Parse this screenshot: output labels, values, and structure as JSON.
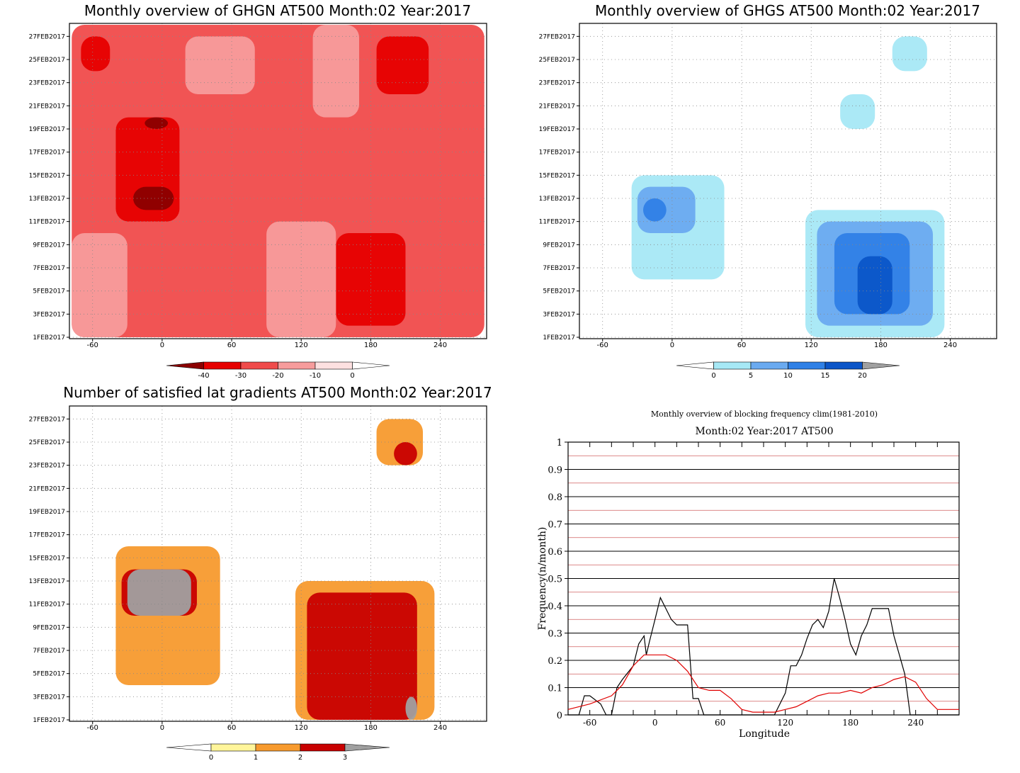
{
  "chart_data": [
    {
      "type": "heatmap",
      "title": "Monthly overview of GHGN AT500 Month:02 Year:2017",
      "y_ticks": [
        "1FEB2017",
        "3FEB2017",
        "5FEB2017",
        "7FEB2017",
        "9FEB2017",
        "11FEB2017",
        "13FEB2017",
        "15FEB2017",
        "17FEB2017",
        "19FEB2017",
        "21FEB2017",
        "23FEB2017",
        "25FEB2017",
        "27FEB2017"
      ],
      "x_ticks": [
        "-60",
        "0",
        "60",
        "120",
        "180",
        "240"
      ],
      "xlim": [
        -80,
        280
      ],
      "colorbar": {
        "levels": [
          "-40",
          "-30",
          "-20",
          "-10",
          "0"
        ],
        "colors": [
          "#8b0000",
          "#e60000",
          "#f04b4b",
          "#f79c9c",
          "#fde0e0",
          "#ffffff"
        ]
      },
      "regions": [
        {
          "level": -20,
          "x": [
            -78,
            278
          ],
          "y": [
            1,
            28
          ]
        },
        {
          "level": -30,
          "x": [
            -40,
            15
          ],
          "y": [
            11,
            20
          ]
        },
        {
          "level": -40,
          "x": [
            -25,
            10
          ],
          "y": [
            12,
            14
          ]
        },
        {
          "level": -40,
          "x": [
            -15,
            5
          ],
          "y": [
            19,
            20
          ]
        },
        {
          "level": -30,
          "x": [
            150,
            210
          ],
          "y": [
            2,
            10
          ]
        },
        {
          "level": -30,
          "x": [
            185,
            230
          ],
          "y": [
            22,
            27
          ]
        },
        {
          "level": -30,
          "x": [
            -70,
            -45
          ],
          "y": [
            24,
            27
          ]
        },
        {
          "level": -10,
          "x": [
            20,
            80
          ],
          "y": [
            22,
            27
          ]
        },
        {
          "level": -10,
          "x": [
            130,
            170
          ],
          "y": [
            20,
            28
          ]
        },
        {
          "level": -10,
          "x": [
            -78,
            -30
          ],
          "y": [
            1,
            10
          ]
        },
        {
          "level": -10,
          "x": [
            90,
            150
          ],
          "y": [
            1,
            11
          ]
        }
      ]
    },
    {
      "type": "heatmap",
      "title": "Monthly overview of GHGS AT500 Month:02 Year:2017",
      "y_ticks": [
        "1FEB2017",
        "3FEB2017",
        "5FEB2017",
        "7FEB2017",
        "9FEB2017",
        "11FEB2017",
        "13FEB2017",
        "15FEB2017",
        "17FEB2017",
        "19FEB2017",
        "21FEB2017",
        "23FEB2017",
        "25FEB2017",
        "27FEB2017"
      ],
      "x_ticks": [
        "-60",
        "0",
        "60",
        "120",
        "180",
        "240"
      ],
      "xlim": [
        -80,
        280
      ],
      "colorbar": {
        "levels": [
          "0",
          "5",
          "10",
          "15",
          "20"
        ],
        "colors": [
          "#ffffff",
          "#a6e8f5",
          "#6aaaf0",
          "#2f80e6",
          "#0b55c8",
          "#a0a0a0"
        ]
      },
      "regions": [
        {
          "level": 0,
          "x": [
            -35,
            45
          ],
          "y": [
            6,
            15
          ]
        },
        {
          "level": 5,
          "x": [
            -30,
            20
          ],
          "y": [
            10,
            14
          ]
        },
        {
          "level": 10,
          "x": [
            -25,
            -5
          ],
          "y": [
            11,
            13
          ]
        },
        {
          "level": 0,
          "x": [
            115,
            235
          ],
          "y": [
            1,
            12
          ]
        },
        {
          "level": 5,
          "x": [
            125,
            225
          ],
          "y": [
            2,
            11
          ]
        },
        {
          "level": 10,
          "x": [
            140,
            205
          ],
          "y": [
            3,
            10
          ]
        },
        {
          "level": 15,
          "x": [
            160,
            190
          ],
          "y": [
            3,
            8
          ]
        },
        {
          "level": 0,
          "x": [
            145,
            175
          ],
          "y": [
            19,
            22
          ]
        },
        {
          "level": 0,
          "x": [
            190,
            220
          ],
          "y": [
            24,
            27
          ]
        }
      ]
    },
    {
      "type": "heatmap",
      "title": "Number of satisfied lat gradients AT500 Month:02 Year:2017",
      "y_ticks": [
        "1FEB2017",
        "3FEB2017",
        "5FEB2017",
        "7FEB2017",
        "9FEB2017",
        "11FEB2017",
        "13FEB2017",
        "15FEB2017",
        "17FEB2017",
        "19FEB2017",
        "21FEB2017",
        "23FEB2017",
        "25FEB2017",
        "27FEB2017"
      ],
      "x_ticks": [
        "-60",
        "0",
        "60",
        "120",
        "180",
        "240"
      ],
      "xlim": [
        -80,
        280
      ],
      "colorbar": {
        "levels": [
          "0",
          "1",
          "2",
          "3"
        ],
        "colors": [
          "#ffffff",
          "#fff59a",
          "#f79a2e",
          "#c80000",
          "#a0a0a0"
        ]
      },
      "regions": [
        {
          "level": 1,
          "x": [
            -40,
            50
          ],
          "y": [
            4,
            16
          ]
        },
        {
          "level": 2,
          "x": [
            -35,
            30
          ],
          "y": [
            10,
            14
          ]
        },
        {
          "level": 3,
          "x": [
            -30,
            25
          ],
          "y": [
            10,
            14
          ]
        },
        {
          "level": 1,
          "x": [
            115,
            235
          ],
          "y": [
            1,
            13
          ]
        },
        {
          "level": 2,
          "x": [
            125,
            220
          ],
          "y": [
            1,
            12
          ]
        },
        {
          "level": 3,
          "x": [
            210,
            220
          ],
          "y": [
            1,
            3
          ]
        },
        {
          "level": 1,
          "x": [
            185,
            225
          ],
          "y": [
            23,
            27
          ]
        },
        {
          "level": 2,
          "x": [
            200,
            220
          ],
          "y": [
            23,
            25
          ]
        }
      ]
    },
    {
      "type": "line",
      "title": "Monthly overview of blocking frequency clim(1981-2010)",
      "subtitle": "Month:02 Year:2017  AT500",
      "xlabel": "Longitude",
      "ylabel": "Frequency(n/month)",
      "xlim": [
        -80,
        280
      ],
      "ylim": [
        0,
        1
      ],
      "x_ticks": [
        "-60",
        "0",
        "60",
        "120",
        "180",
        "240"
      ],
      "y_ticks": [
        "0",
        "0.1",
        "0.2",
        "0.3",
        "0.4",
        "0.5",
        "0.6",
        "0.7",
        "0.8",
        "0.9",
        "1"
      ],
      "grid": true,
      "series": [
        {
          "color": "#000000",
          "x": [
            -80,
            -70,
            -65,
            -60,
            -50,
            -45,
            -40,
            -35,
            -30,
            -20,
            -15,
            -10,
            -8,
            -5,
            0,
            5,
            10,
            15,
            20,
            30,
            35,
            40,
            45,
            50,
            55,
            60,
            75,
            100,
            110,
            120,
            125,
            130,
            135,
            140,
            145,
            150,
            155,
            160,
            165,
            170,
            175,
            180,
            185,
            190,
            195,
            200,
            210,
            215,
            220,
            225,
            230,
            235,
            245,
            280
          ],
          "y": [
            0,
            0,
            0.07,
            0.07,
            0.04,
            0,
            0,
            0.1,
            0.13,
            0.18,
            0.26,
            0.29,
            0.22,
            0.27,
            0.35,
            0.43,
            0.39,
            0.35,
            0.33,
            0.33,
            0.06,
            0.06,
            0,
            0,
            0,
            0,
            0,
            0,
            0,
            0.08,
            0.18,
            0.18,
            0.22,
            0.28,
            0.33,
            0.35,
            0.32,
            0.38,
            0.5,
            0.43,
            0.35,
            0.26,
            0.22,
            0.29,
            0.33,
            0.39,
            0.39,
            0.39,
            0.29,
            0.22,
            0.15,
            0,
            0,
            0
          ]
        },
        {
          "color": "#e00000",
          "x": [
            -80,
            -60,
            -40,
            -30,
            -20,
            -10,
            0,
            10,
            20,
            30,
            40,
            50,
            60,
            70,
            80,
            90,
            100,
            110,
            120,
            130,
            140,
            150,
            160,
            170,
            180,
            190,
            200,
            210,
            220,
            230,
            240,
            250,
            260,
            280
          ],
          "y": [
            0.02,
            0.04,
            0.07,
            0.11,
            0.18,
            0.22,
            0.22,
            0.22,
            0.2,
            0.16,
            0.1,
            0.09,
            0.09,
            0.06,
            0.02,
            0.01,
            0.01,
            0.01,
            0.02,
            0.03,
            0.05,
            0.07,
            0.08,
            0.08,
            0.09,
            0.08,
            0.1,
            0.11,
            0.13,
            0.14,
            0.12,
            0.06,
            0.02,
            0.02
          ]
        }
      ]
    }
  ]
}
